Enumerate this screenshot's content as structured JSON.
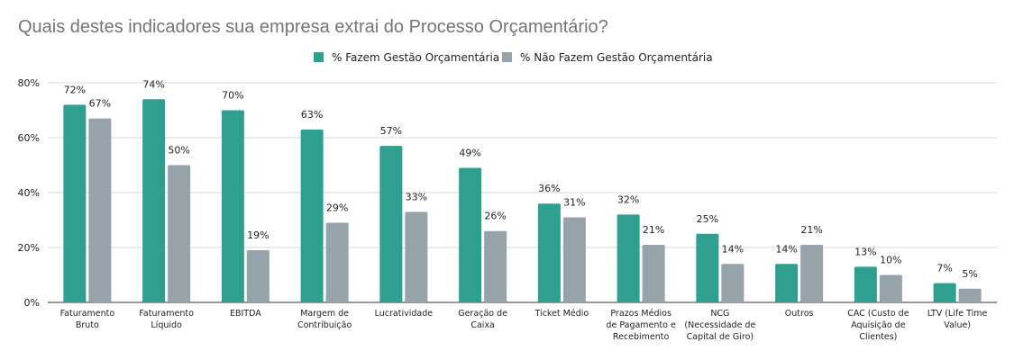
{
  "chart_data": {
    "type": "bar",
    "title": "Quais destes indicadores sua empresa extrai do Processo Orçamentário?",
    "xlabel": "",
    "ylabel": "",
    "ylim": [
      0,
      80
    ],
    "y_ticks": [
      "0%",
      "20%",
      "40%",
      "60%",
      "80%"
    ],
    "y_tick_values": [
      0,
      20,
      40,
      60,
      80
    ],
    "grid": true,
    "legend_position": "top-center",
    "categories": [
      [
        "Faturamento",
        "Bruto"
      ],
      [
        "Faturamento",
        "Líquido"
      ],
      [
        "EBITDA"
      ],
      [
        "Margem de",
        "Contribuição"
      ],
      [
        "Lucratividade"
      ],
      [
        "Geração de",
        "Caixa"
      ],
      [
        "Ticket Médio"
      ],
      [
        "Prazos Médios",
        "de Pagamento e",
        "Recebimento"
      ],
      [
        "NCG",
        "(Necessidade de",
        "Capital de Giro)"
      ],
      [
        "Outros"
      ],
      [
        "CAC (Custo de",
        "Aquisição de",
        "Clientes)"
      ],
      [
        "LTV (Life Time",
        "Value)"
      ]
    ],
    "series": [
      {
        "name": "% Fazem Gestão Orçamentária",
        "color": "#2fa08f",
        "values": [
          72,
          74,
          70,
          63,
          57,
          49,
          36,
          32,
          25,
          14,
          13,
          7
        ],
        "labels": [
          "72%",
          "74%",
          "70%",
          "63%",
          "57%",
          "49%",
          "36%",
          "32%",
          "25%",
          "14%",
          "13%",
          "7%"
        ]
      },
      {
        "name": "% Não Fazem Gestão Orçamentária",
        "color": "#97a3ab",
        "values": [
          67,
          50,
          19,
          29,
          33,
          26,
          31,
          21,
          14,
          21,
          10,
          5
        ],
        "labels": [
          "67%",
          "50%",
          "19%",
          "29%",
          "33%",
          "26%",
          "31%",
          "21%",
          "14%",
          "21%",
          "10%",
          "5%"
        ]
      }
    ]
  },
  "colors": {
    "grid": "#d9d9d9",
    "axis": "#333333",
    "title": "#757575"
  }
}
